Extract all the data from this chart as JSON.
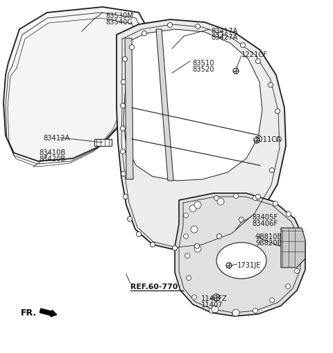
{
  "bg_color": "#ffffff",
  "line_color": "#1a1a1a",
  "labels": {
    "83530M": [
      152,
      18,
      "83530M"
    ],
    "83540G": [
      152,
      28,
      "83540G"
    ],
    "83417A": [
      304,
      42,
      "83417A"
    ],
    "83427A": [
      304,
      52,
      "83427A"
    ],
    "83510": [
      277,
      88,
      "83510"
    ],
    "83520": [
      277,
      98,
      "83520"
    ],
    "1221CF": [
      348,
      78,
      "1221CF"
    ],
    "83412A": [
      88,
      198,
      "83412A"
    ],
    "83410B": [
      72,
      220,
      "83410B"
    ],
    "83420B": [
      72,
      230,
      "83420B"
    ],
    "1011CA": [
      367,
      198,
      "1011CA"
    ],
    "83405F": [
      365,
      310,
      "83405F"
    ],
    "83406F": [
      365,
      320,
      "83406F"
    ],
    "98810B": [
      370,
      338,
      "98810B"
    ],
    "98820B": [
      370,
      348,
      "98820B"
    ],
    "1731JE": [
      345,
      378,
      "1731JE"
    ],
    "1140FZ": [
      303,
      430,
      "1140FZ"
    ],
    "11407": [
      303,
      440,
      "11407"
    ],
    "FR": [
      28,
      448,
      "FR."
    ],
    "REF": [
      195,
      408,
      "REF.60-770"
    ]
  }
}
